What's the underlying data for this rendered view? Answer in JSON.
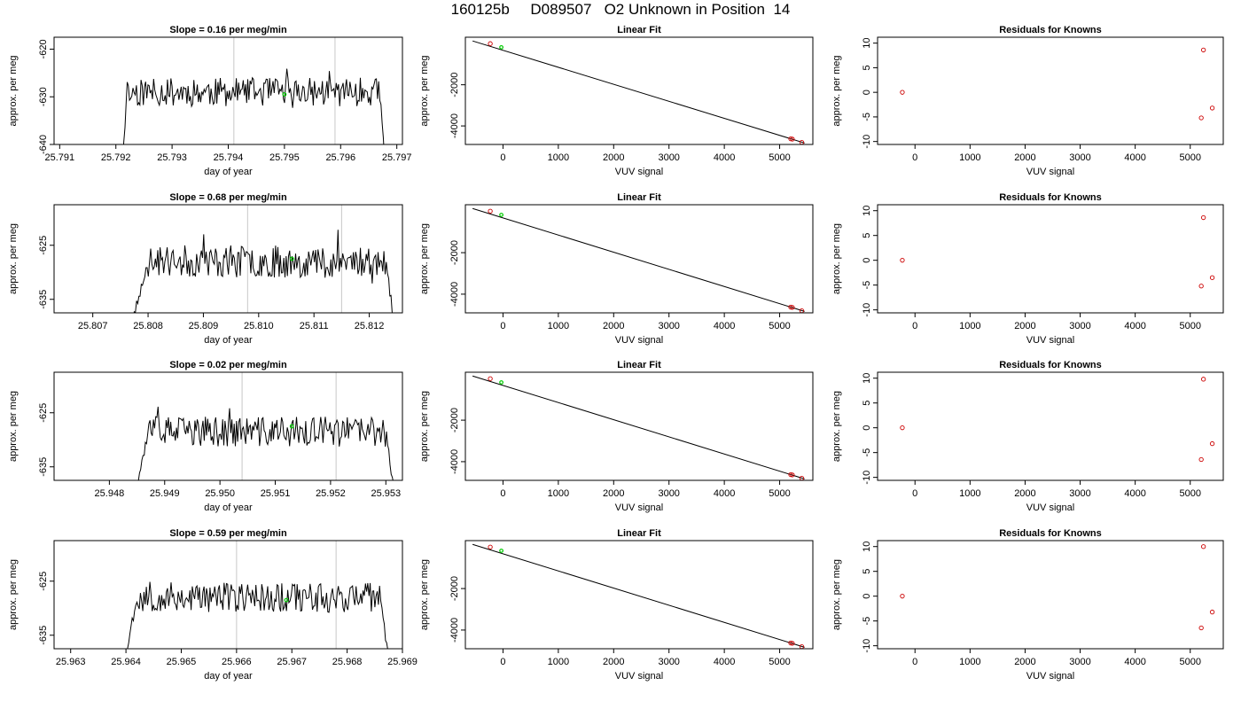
{
  "title": "160125b     D089507   O2 Unknown in Position  14",
  "colors": {
    "trace": "#000000",
    "known": "#cc0000",
    "unknown": "#00cc00",
    "marker_line": "#c8c8c8"
  },
  "chart_data": [
    {
      "type": "line",
      "title": "Slope =  0.16  per meg/min",
      "xlabel": "day of year",
      "ylabel": "approx. per meg",
      "xlim": [
        25.7909,
        25.7971
      ],
      "ylim": [
        -640,
        -617.5
      ],
      "xticks": [
        "25.791",
        "25.792",
        "25.793",
        "25.794",
        "25.795",
        "25.796",
        "25.797"
      ],
      "yticks": [
        "-640",
        "-630",
        "-620"
      ],
      "trace": {
        "x_start": 25.7921,
        "x_end": 25.7968,
        "plateau_start": 25.7922,
        "plateau_end": 25.7967,
        "level": -629,
        "noise": 3.0,
        "seed": 11
      },
      "marker_lines": [
        25.7941,
        25.7959
      ],
      "unknown_point": [
        25.795,
        -629.5
      ]
    },
    {
      "type": "scatter",
      "title": "Linear Fit",
      "xlabel": "VUV signal",
      "ylabel": "approx. per meg",
      "xlim": [
        -680,
        5600
      ],
      "ylim": [
        -4900,
        310
      ],
      "xticks": [
        "0",
        "1000",
        "2000",
        "3000",
        "4000",
        "5000"
      ],
      "yticks": [
        "-4000",
        "-2000"
      ],
      "known_points": [
        [
          -230,
          0
        ],
        [
          5200,
          -4625
        ],
        [
          5230,
          -4640
        ],
        [
          5400,
          -4800
        ]
      ],
      "unknown_points": [
        [
          -30,
          -180
        ]
      ],
      "fit_line": [
        [
          -550,
          130
        ],
        [
          5450,
          -4830
        ]
      ]
    },
    {
      "type": "scatter",
      "title": "Residuals for Knowns",
      "xlabel": "VUV signal",
      "ylabel": "approx. per meg",
      "xlim": [
        -680,
        5600
      ],
      "ylim": [
        -10.6,
        11.2
      ],
      "xticks": [
        "0",
        "1000",
        "2000",
        "3000",
        "4000",
        "5000"
      ],
      "yticks": [
        "-10",
        "-5",
        "0",
        "5",
        "10"
      ],
      "known_points": [
        [
          -230,
          0
        ],
        [
          5200,
          -5.2
        ],
        [
          5240,
          8.6
        ],
        [
          5400,
          -3.2
        ]
      ]
    },
    {
      "type": "line",
      "title": "Slope =  0.68  per meg/min",
      "xlabel": "day of year",
      "ylabel": "approx. per meg",
      "xlim": [
        25.8063,
        25.8126
      ],
      "ylim": [
        -637.5,
        -617.5
      ],
      "xticks": [
        "25.807",
        "25.808",
        "25.809",
        "25.810",
        "25.811",
        "25.812"
      ],
      "yticks": [
        "-635",
        "-625"
      ],
      "trace": {
        "x_start": 25.8076,
        "x_end": 25.8125,
        "plateau_start": 25.808,
        "plateau_end": 25.8123,
        "level": -628,
        "noise": 3.0,
        "seed": 23
      },
      "marker_lines": [
        25.8098,
        25.8115
      ],
      "unknown_point": [
        25.8106,
        -627.5
      ]
    },
    {
      "type": "scatter",
      "title": "Linear Fit",
      "xlabel": "VUV signal",
      "ylabel": "approx. per meg",
      "xlim": [
        -680,
        5600
      ],
      "ylim": [
        -4900,
        310
      ],
      "xticks": [
        "0",
        "1000",
        "2000",
        "3000",
        "4000",
        "5000"
      ],
      "yticks": [
        "-4000",
        "-2000"
      ],
      "known_points": [
        [
          -230,
          0
        ],
        [
          5200,
          -4625
        ],
        [
          5230,
          -4640
        ],
        [
          5400,
          -4800
        ]
      ],
      "unknown_points": [
        [
          -30,
          -180
        ]
      ],
      "fit_line": [
        [
          -550,
          130
        ],
        [
          5450,
          -4830
        ]
      ]
    },
    {
      "type": "scatter",
      "title": "Residuals for Knowns",
      "xlabel": "VUV signal",
      "ylabel": "approx. per meg",
      "xlim": [
        -680,
        5600
      ],
      "ylim": [
        -10.6,
        11.2
      ],
      "xticks": [
        "0",
        "1000",
        "2000",
        "3000",
        "4000",
        "5000"
      ],
      "yticks": [
        "-10",
        "-5",
        "0",
        "5",
        "10"
      ],
      "known_points": [
        [
          -230,
          0
        ],
        [
          5200,
          -5.2
        ],
        [
          5240,
          8.6
        ],
        [
          5400,
          -3.5
        ]
      ]
    },
    {
      "type": "line",
      "title": "Slope =  0.02  per meg/min",
      "xlabel": "day of year",
      "ylabel": "approx. per meg",
      "xlim": [
        25.947,
        25.9533
      ],
      "ylim": [
        -637.5,
        -617.5
      ],
      "xticks": [
        "25.948",
        "25.949",
        "25.950",
        "25.951",
        "25.952",
        "25.953"
      ],
      "yticks": [
        "-635",
        "-625"
      ],
      "trace": {
        "x_start": 25.9484,
        "x_end": 25.9532,
        "plateau_start": 25.9487,
        "plateau_end": 25.953,
        "level": -628.5,
        "noise": 2.8,
        "seed": 37
      },
      "marker_lines": [
        25.9504,
        25.9521
      ],
      "unknown_point": [
        25.9513,
        -627.5
      ]
    },
    {
      "type": "scatter",
      "title": "Linear Fit",
      "xlabel": "VUV signal",
      "ylabel": "approx. per meg",
      "xlim": [
        -680,
        5600
      ],
      "ylim": [
        -4900,
        310
      ],
      "xticks": [
        "0",
        "1000",
        "2000",
        "3000",
        "4000",
        "5000"
      ],
      "yticks": [
        "-4000",
        "-2000"
      ],
      "known_points": [
        [
          -230,
          0
        ],
        [
          5200,
          -4625
        ],
        [
          5230,
          -4640
        ],
        [
          5400,
          -4800
        ]
      ],
      "unknown_points": [
        [
          -30,
          -180
        ]
      ],
      "fit_line": [
        [
          -550,
          130
        ],
        [
          5450,
          -4830
        ]
      ]
    },
    {
      "type": "scatter",
      "title": "Residuals for Knowns",
      "xlabel": "VUV signal",
      "ylabel": "approx. per meg",
      "xlim": [
        -680,
        5600
      ],
      "ylim": [
        -10.6,
        11.2
      ],
      "xticks": [
        "0",
        "1000",
        "2000",
        "3000",
        "4000",
        "5000"
      ],
      "yticks": [
        "-10",
        "-5",
        "0",
        "5",
        "10"
      ],
      "known_points": [
        [
          -230,
          0
        ],
        [
          5200,
          -6.4
        ],
        [
          5240,
          9.8
        ],
        [
          5400,
          -3.2
        ]
      ]
    },
    {
      "type": "line",
      "title": "Slope =  0.59  per meg/min",
      "xlabel": "day of year",
      "ylabel": "approx. per meg",
      "xlim": [
        25.9627,
        25.969
      ],
      "ylim": [
        -637.5,
        -617.5
      ],
      "xticks": [
        "25.963",
        "25.964",
        "25.965",
        "25.966",
        "25.967",
        "25.968",
        "25.969"
      ],
      "yticks": [
        "-635",
        "-625"
      ],
      "trace": {
        "x_start": 25.9639,
        "x_end": 25.9688,
        "plateau_start": 25.9642,
        "plateau_end": 25.9686,
        "level": -628,
        "noise": 2.8,
        "seed": 53
      },
      "marker_lines": [
        25.966,
        25.9678
      ],
      "unknown_point": [
        25.9669,
        -628.5
      ]
    },
    {
      "type": "scatter",
      "title": "Linear Fit",
      "xlabel": "VUV signal",
      "ylabel": "approx. per meg",
      "xlim": [
        -680,
        5600
      ],
      "ylim": [
        -4900,
        310
      ],
      "xticks": [
        "0",
        "1000",
        "2000",
        "3000",
        "4000",
        "5000"
      ],
      "yticks": [
        "-4000",
        "-2000"
      ],
      "known_points": [
        [
          -230,
          0
        ],
        [
          5200,
          -4625
        ],
        [
          5230,
          -4640
        ],
        [
          5400,
          -4800
        ]
      ],
      "unknown_points": [
        [
          -30,
          -180
        ]
      ],
      "fit_line": [
        [
          -550,
          130
        ],
        [
          5450,
          -4830
        ]
      ]
    },
    {
      "type": "scatter",
      "title": "Residuals for Knowns",
      "xlabel": "VUV signal",
      "ylabel": "approx. per meg",
      "xlim": [
        -680,
        5600
      ],
      "ylim": [
        -10.6,
        11.2
      ],
      "xticks": [
        "0",
        "1000",
        "2000",
        "3000",
        "4000",
        "5000"
      ],
      "yticks": [
        "-10",
        "-5",
        "0",
        "5",
        "10"
      ],
      "known_points": [
        [
          -230,
          0
        ],
        [
          5200,
          -6.4
        ],
        [
          5240,
          10.0
        ],
        [
          5400,
          -3.2
        ]
      ]
    }
  ]
}
